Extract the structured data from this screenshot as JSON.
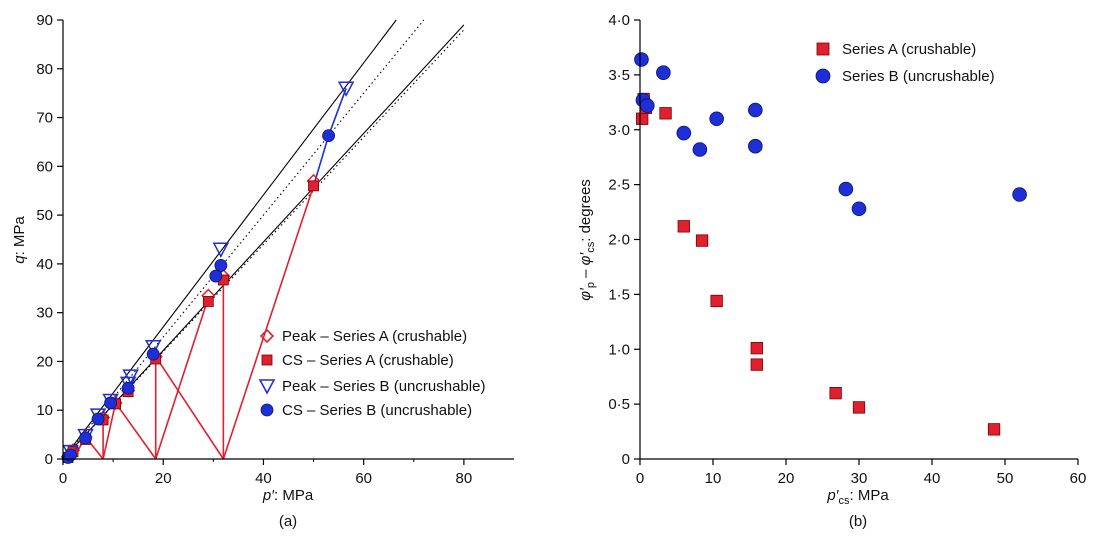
{
  "chart_data": [
    {
      "type": "scatter",
      "panel": "a",
      "caption": "(a)",
      "xlabel_var": "p′",
      "xlabel_unit": ": MPa",
      "ylabel_var": "q",
      "ylabel_unit": ": MPa",
      "xlim": [
        0,
        90
      ],
      "ylim": [
        0,
        90
      ],
      "x_ticks": [
        "0",
        "20",
        "40",
        "60",
        "80"
      ],
      "y_ticks": [
        "0",
        "10",
        "20",
        "30",
        "40",
        "50",
        "60",
        "70",
        "80",
        "90"
      ],
      "legend_position": "bottom-right",
      "reference_lines": [
        {
          "x": [
            0,
            66.5
          ],
          "y": [
            0,
            90
          ],
          "color": "#000000",
          "style": "solid"
        },
        {
          "x": [
            0,
            72
          ],
          "y": [
            0,
            90
          ],
          "color": "#000000",
          "style": "dotted"
        },
        {
          "x": [
            0,
            80
          ],
          "y": [
            0,
            89
          ],
          "color": "#000000",
          "style": "solid"
        },
        {
          "x": [
            0,
            80
          ],
          "y": [
            0,
            88
          ],
          "color": "#000000",
          "style": "dotted"
        }
      ],
      "stress_paths": {
        "color": "#e0202e",
        "paths": [
          {
            "x": [
              2,
              4.5
            ],
            "y": [
              0,
              4.5
            ]
          },
          {
            "x": [
              4.5,
              8
            ],
            "y": [
              4.5,
              0
            ]
          },
          {
            "x": [
              8,
              10.5
            ],
            "y": [
              0,
              11.5
            ]
          },
          {
            "x": [
              10.5,
              18.5
            ],
            "y": [
              11.5,
              0
            ]
          },
          {
            "x": [
              8,
              8
            ],
            "y": [
              0,
              8.5
            ]
          },
          {
            "x": [
              18.5,
              18.5
            ],
            "y": [
              0,
              21
            ]
          },
          {
            "x": [
              18.5,
              32
            ],
            "y": [
              21,
              0
            ]
          },
          {
            "x": [
              18.5,
              29
            ],
            "y": [
              0,
              33
            ]
          },
          {
            "x": [
              32,
              32
            ],
            "y": [
              0,
              37
            ]
          },
          {
            "x": [
              32,
              50
            ],
            "y": [
              0,
              56
            ]
          },
          {
            "x": [
              1,
              2
            ],
            "y": [
              0,
              1.5
            ]
          }
        ]
      },
      "series": [
        {
          "name": "Peak – Series A (crushable)",
          "marker": "diamond-open",
          "color": "#e0202e",
          "points": [
            [
              1,
              0.5
            ],
            [
              2,
              1.8
            ],
            [
              4.5,
              4.5
            ],
            [
              8,
              8.5
            ],
            [
              10.5,
              11.5
            ],
            [
              13,
              14
            ],
            [
              18.5,
              21
            ],
            [
              29,
              33.5
            ],
            [
              32,
              37.5
            ],
            [
              50,
              57
            ]
          ]
        },
        {
          "name": "CS – Series A (crushable)",
          "marker": "square-filled",
          "color": "#e0202e",
          "points": [
            [
              1,
              0.3
            ],
            [
              2,
              1.5
            ],
            [
              4.5,
              4
            ],
            [
              8,
              8
            ],
            [
              10.5,
              11.3
            ],
            [
              13,
              13.8
            ],
            [
              18.5,
              20.5
            ],
            [
              29,
              32.3
            ],
            [
              32,
              36.7
            ],
            [
              50,
              56
            ]
          ]
        },
        {
          "name": "Peak – Series B (uncrushable)",
          "marker": "triangle-down-open",
          "color": "#1f2fd8",
          "points": [
            [
              1.5,
              1.5
            ],
            [
              4.5,
              4.8
            ],
            [
              7,
              9
            ],
            [
              9.5,
              12
            ],
            [
              13,
              15.5
            ],
            [
              13.5,
              17
            ],
            [
              18,
              23
            ],
            [
              31.5,
              43
            ],
            [
              56.5,
              76
            ]
          ]
        },
        {
          "name": "CS – Series B (uncrushable)",
          "marker": "circle-filled",
          "color": "#1f2fd8",
          "points": [
            [
              1,
              0.3
            ],
            [
              1.5,
              0.8
            ],
            [
              4.5,
              4.3
            ],
            [
              7,
              8.2
            ],
            [
              9.5,
              11.5
            ],
            [
              13,
              14.5
            ],
            [
              18,
              21.5
            ],
            [
              30.5,
              37.5
            ],
            [
              31.5,
              39.7
            ],
            [
              53,
              66.3
            ]
          ]
        }
      ],
      "series_B_path": {
        "x": [
          50,
          53,
          56.5
        ],
        "y": [
          56,
          66.3,
          76
        ],
        "color": "#1f2fd8"
      }
    },
    {
      "type": "scatter",
      "panel": "b",
      "caption": "(b)",
      "xlabel_var": "p′",
      "xlabel_sub": "cs",
      "xlabel_unit": ": MPa",
      "ylabel_parts": {
        "phi1": "φ′",
        "sub1": "p",
        "mid": " – ",
        "phi2": "φ′",
        "sub2": "cs",
        "unit": ": degrees"
      },
      "xlim": [
        0,
        60
      ],
      "ylim": [
        0,
        4
      ],
      "x_ticks": [
        "0",
        "10",
        "20",
        "30",
        "40",
        "50",
        "60"
      ],
      "y_ticks": [
        "0",
        "0·5",
        "1·0",
        "1·5",
        "2·0",
        "2·5",
        "3·0",
        "3·5",
        "4·0"
      ],
      "legend_position": "top-right",
      "series": [
        {
          "name": "Series A (crushable)",
          "marker": "square-filled",
          "color": "#e0202e",
          "points": [
            [
              0.3,
              3.1
            ],
            [
              0.5,
              3.28
            ],
            [
              0.8,
              3.2
            ],
            [
              3.5,
              3.15
            ],
            [
              6,
              2.12
            ],
            [
              8.5,
              1.99
            ],
            [
              10.5,
              1.44
            ],
            [
              16,
              1.01
            ],
            [
              16,
              0.86
            ],
            [
              26.8,
              0.6
            ],
            [
              30,
              0.47
            ],
            [
              48.5,
              0.27
            ]
          ]
        },
        {
          "name": "Series B (uncrushable)",
          "marker": "circle-filled",
          "color": "#1f2fd8",
          "points": [
            [
              0.2,
              3.64
            ],
            [
              0.4,
              3.27
            ],
            [
              1,
              3.22
            ],
            [
              3.2,
              3.52
            ],
            [
              6,
              2.97
            ],
            [
              8.2,
              2.82
            ],
            [
              10.5,
              3.1
            ],
            [
              15.8,
              3.18
            ],
            [
              15.8,
              2.85
            ],
            [
              28.2,
              2.46
            ],
            [
              30,
              2.28
            ],
            [
              52,
              2.41
            ]
          ]
        }
      ]
    }
  ]
}
